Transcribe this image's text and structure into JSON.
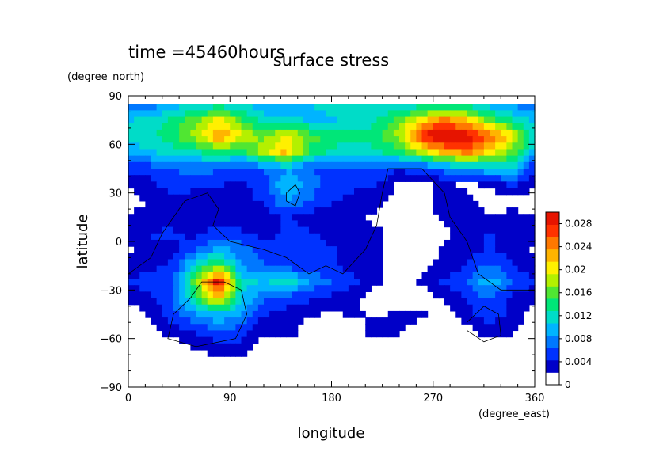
{
  "chart_data": {
    "type": "heatmap",
    "time_label": "time =45460hours",
    "title": "surface stress",
    "xlabel": "longitude",
    "ylabel": "latitude",
    "x_unit": "(degree_east)",
    "y_unit": "(degree_north)",
    "xlim": [
      0,
      360
    ],
    "ylim": [
      -90,
      90
    ],
    "x_ticks": [
      "0",
      "90",
      "180",
      "270",
      "360"
    ],
    "y_ticks": [
      "90",
      "60",
      "30",
      "0",
      "−30",
      "−60",
      "−90"
    ],
    "colorbar": {
      "min": 0,
      "max": 0.03,
      "ticks": [
        "0",
        "0.004",
        "0.008",
        "0.012",
        "0.016",
        "0.02",
        "0.024",
        "0.028"
      ],
      "colors": [
        "#ffffff",
        "#0000c8",
        "#0032ff",
        "#0078ff",
        "#00b4ff",
        "#00dcc8",
        "#00e678",
        "#50e632",
        "#b4f000",
        "#fff000",
        "#ffb400",
        "#ff7800",
        "#ff3200",
        "#e61400"
      ]
    },
    "field": {
      "x": [
        0,
        20,
        40,
        60,
        80,
        100,
        120,
        140,
        160,
        180,
        200,
        220,
        240,
        260,
        280,
        300,
        320,
        340,
        360
      ],
      "y": [
        85,
        75,
        65,
        55,
        45,
        35,
        25,
        15,
        5,
        -5,
        -15,
        -25,
        -35,
        -45,
        -55,
        -65,
        -75,
        -80
      ],
      "z": [
        [
          0.006,
          0.007,
          0.009,
          0.01,
          0.011,
          0.01,
          0.009,
          0.009,
          0.01,
          0.011,
          0.012,
          0.011,
          0.01,
          0.011,
          0.012,
          0.011,
          0.009,
          0.008,
          0.006
        ],
        [
          0.01,
          0.011,
          0.013,
          0.016,
          0.02,
          0.015,
          0.011,
          0.011,
          0.01,
          0.01,
          0.011,
          0.012,
          0.016,
          0.02,
          0.024,
          0.021,
          0.016,
          0.012,
          0.01
        ],
        [
          0.011,
          0.012,
          0.014,
          0.018,
          0.024,
          0.02,
          0.016,
          0.02,
          0.016,
          0.014,
          0.013,
          0.014,
          0.018,
          0.028,
          0.032,
          0.03,
          0.026,
          0.02,
          0.011
        ],
        [
          0.009,
          0.01,
          0.011,
          0.012,
          0.014,
          0.013,
          0.018,
          0.022,
          0.014,
          0.012,
          0.011,
          0.012,
          0.014,
          0.018,
          0.022,
          0.024,
          0.02,
          0.016,
          0.009
        ],
        [
          0.004,
          0.005,
          0.006,
          0.007,
          0.006,
          0.005,
          0.006,
          0.008,
          0.006,
          0.005,
          0.005,
          0.006,
          0.004,
          0.005,
          0.007,
          0.008,
          0.01,
          0.011,
          0.004
        ],
        [
          0.002,
          0.003,
          0.005,
          0.004,
          0.004,
          0.003,
          0.005,
          0.01,
          0.007,
          0.005,
          0.004,
          0.004,
          0.001,
          0.001,
          0.002,
          0.001,
          0.002,
          0.004,
          0.002
        ],
        [
          0.0,
          0.002,
          0.003,
          0.003,
          0.003,
          0.003,
          0.004,
          0.008,
          0.006,
          0.004,
          0.003,
          0.002,
          0.0,
          0.0,
          0.003,
          0.002,
          0.0,
          0.001,
          0.0
        ],
        [
          0.002,
          0.002,
          0.003,
          0.002,
          0.003,
          0.002,
          0.003,
          0.004,
          0.003,
          0.002,
          0.002,
          0.001,
          0.0,
          0.0,
          0.002,
          0.003,
          0.002,
          0.002,
          0.002
        ],
        [
          0.003,
          0.004,
          0.004,
          0.003,
          0.005,
          0.004,
          0.003,
          0.004,
          0.004,
          0.003,
          0.002,
          0.002,
          0.0,
          0.0,
          0.001,
          0.003,
          0.004,
          0.002,
          0.003
        ],
        [
          0.001,
          0.003,
          0.003,
          0.006,
          0.009,
          0.007,
          0.005,
          0.004,
          0.004,
          0.004,
          0.003,
          0.002,
          0.0,
          0.0,
          0.002,
          0.003,
          0.004,
          0.003,
          0.001
        ],
        [
          0.002,
          0.003,
          0.004,
          0.012,
          0.016,
          0.008,
          0.006,
          0.005,
          0.004,
          0.004,
          0.003,
          0.002,
          0.0,
          0.001,
          0.002,
          0.004,
          0.006,
          0.004,
          0.002
        ],
        [
          0.004,
          0.005,
          0.006,
          0.016,
          0.03,
          0.012,
          0.01,
          0.012,
          0.008,
          0.006,
          0.004,
          0.002,
          0.0,
          0.002,
          0.004,
          0.006,
          0.01,
          0.006,
          0.004
        ],
        [
          0.002,
          0.003,
          0.006,
          0.014,
          0.022,
          0.01,
          0.006,
          0.005,
          0.004,
          0.003,
          0.002,
          0.0,
          0.0,
          0.0,
          0.002,
          0.004,
          0.006,
          0.003,
          0.002
        ],
        [
          0.0,
          0.002,
          0.005,
          0.008,
          0.01,
          0.008,
          0.004,
          0.003,
          0.002,
          0.001,
          0.002,
          0.001,
          0.002,
          0.002,
          0.0,
          0.003,
          0.005,
          0.003,
          0.0
        ],
        [
          0.0,
          0.0,
          0.003,
          0.004,
          0.006,
          0.005,
          0.002,
          0.003,
          0.0,
          0.0,
          0.0,
          0.003,
          0.002,
          0.0,
          0.0,
          0.0,
          0.003,
          0.002,
          0.0
        ],
        [
          0.0,
          0.0,
          0.0,
          0.002,
          0.003,
          0.003,
          0.0,
          0.0,
          0.0,
          0.0,
          0.0,
          0.0,
          0.0,
          0.0,
          0.0,
          0.0,
          0.0,
          0.0,
          0.0
        ],
        [
          0.0,
          0.0,
          0.0,
          0.0,
          0.0,
          0.0,
          0.0,
          0.0,
          0.0,
          0.0,
          0.0,
          0.0,
          0.0,
          0.0,
          0.0,
          0.0,
          0.0,
          0.0,
          0.0
        ],
        [
          0.0,
          0.0,
          0.0,
          0.0,
          0.0,
          0.0,
          0.0,
          0.0,
          0.0,
          0.0,
          0.0,
          0.0,
          0.0,
          0.0,
          0.0,
          0.0,
          0.0,
          0.0,
          0.0
        ]
      ]
    }
  }
}
